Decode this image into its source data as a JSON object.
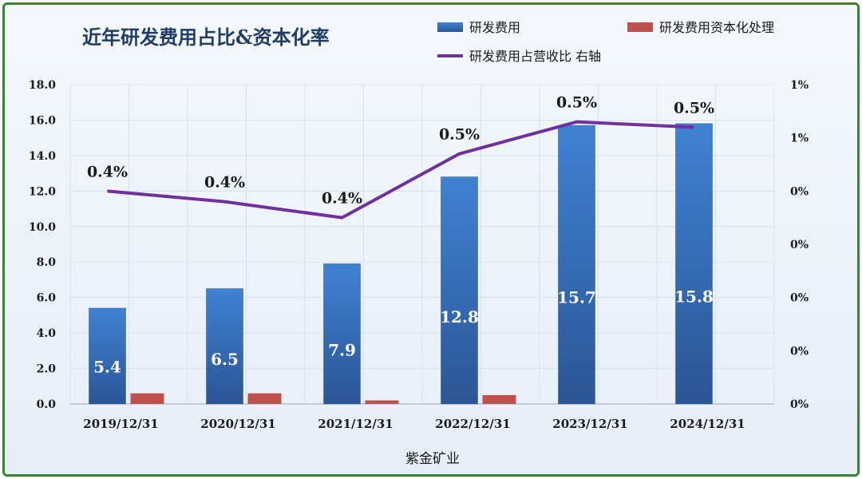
{
  "chart_data": {
    "type": "bar",
    "title": "近年研发费用占比&资本化率",
    "xlabel": "紫金矿业",
    "categories": [
      "2019/12/31",
      "2020/12/31",
      "2021/12/31",
      "2022/12/31",
      "2023/12/31",
      "2024/12/31"
    ],
    "ylim": [
      0,
      18
    ],
    "yticks": [
      "0.0",
      "2.0",
      "4.0",
      "6.0",
      "8.0",
      "10.0",
      "12.0",
      "14.0",
      "16.0",
      "18.0"
    ],
    "y2ticks": [
      "0%",
      "0%",
      "0%",
      "0%",
      "0%",
      "1%",
      "1%"
    ],
    "y2lim": [
      0,
      0.6
    ],
    "grid": true,
    "legend_position": "top-right",
    "series": [
      {
        "name": "研发费用",
        "type": "bar",
        "color": "#3a74c0",
        "values": [
          5.4,
          6.5,
          7.9,
          12.8,
          15.7,
          15.8
        ],
        "labels": [
          "5.4",
          "6.5",
          "7.9",
          "12.8",
          "15.7",
          "15.8"
        ]
      },
      {
        "name": "研发费用资本化处理",
        "type": "bar",
        "color": "#c0504d",
        "values": [
          0.6,
          0.6,
          0.2,
          0.5,
          0,
          0
        ]
      },
      {
        "name": "研发费用占营收比 右轴",
        "type": "line",
        "axis": "right",
        "color": "#7030a0",
        "values": [
          0.4,
          0.38,
          0.35,
          0.47,
          0.53,
          0.52
        ],
        "labels": [
          "0.4%",
          "0.4%",
          "0.4%",
          "0.5%",
          "0.5%",
          "0.5%"
        ]
      }
    ]
  }
}
